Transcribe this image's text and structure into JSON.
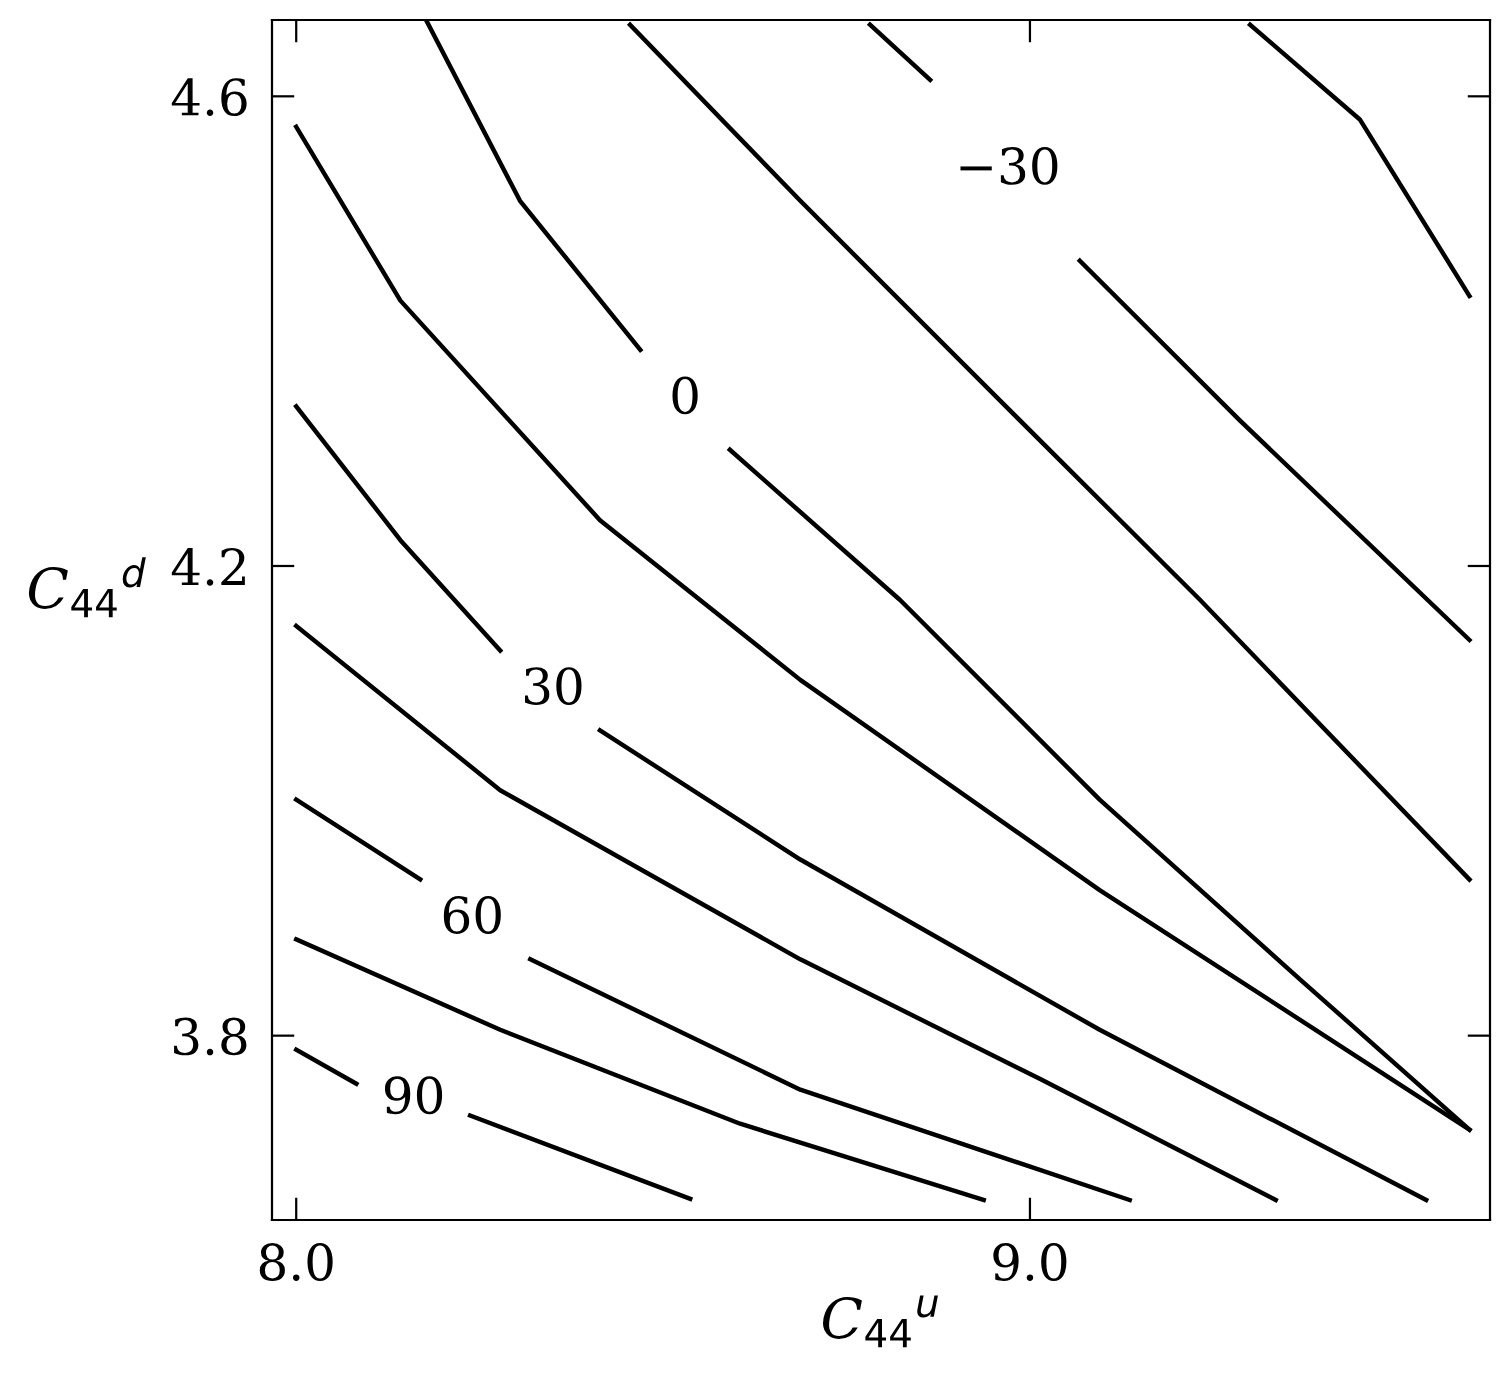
{
  "chart_data": {
    "type": "line",
    "xlabel": "C$_{44}$$^{u}$",
    "ylabel": "C$_{44}$$^{d}$",
    "xlim": [
      7.967,
      9.627
    ],
    "ylim": [
      3.643,
      4.665
    ],
    "xticks": [
      {
        "value": 8.0,
        "label": "8.0"
      },
      {
        "value": 9.0,
        "label": "9.0"
      }
    ],
    "yticks": [
      {
        "value": 3.8,
        "label": "3.8"
      },
      {
        "value": 4.2,
        "label": "4.2"
      },
      {
        "value": 4.6,
        "label": "4.6"
      }
    ],
    "grid": false,
    "legend": false,
    "marker": "none",
    "line_style": "solid",
    "series": [
      {
        "name": "90",
        "color": "#000000",
        "x": [
          8.0,
          8.082,
          8.16,
          8.237,
          8.537
        ],
        "values": [
          3.788,
          3.759,
          null,
          3.732,
          3.661
        ]
      },
      {
        "color": "#000000",
        "x": [
          8.0,
          8.278,
          8.605,
          8.937
        ],
        "values": [
          3.882,
          3.805,
          3.725,
          3.66
        ]
      },
      {
        "name": "60",
        "color": "#000000",
        "x": [
          8.0,
          8.169,
          8.24,
          8.319,
          8.687,
          9.136
        ],
        "values": [
          4.001,
          3.933,
          null,
          3.865,
          3.754,
          3.66
        ]
      },
      {
        "color": "#000000",
        "x": [
          8.0,
          8.278,
          8.687,
          9.014,
          9.335
        ],
        "values": [
          4.149,
          4.009,
          3.865,
          3.763,
          3.66
        ]
      },
      {
        "name": "30",
        "color": "#000000",
        "x": [
          8.0,
          8.142,
          8.278,
          8.35,
          8.414,
          8.687,
          9.095,
          9.54
        ],
        "values": [
          4.336,
          4.222,
          4.128,
          null,
          4.06,
          3.95,
          3.805,
          3.66
        ]
      },
      {
        "color": "#000000",
        "x": [
          8.0,
          8.142,
          8.414,
          8.687,
          9.095,
          9.599
        ],
        "values": [
          4.574,
          4.426,
          4.239,
          4.103,
          3.924,
          3.72
        ]
      },
      {
        "name": "0",
        "color": "#000000",
        "x": [
          8.177,
          8.305,
          8.469,
          8.53,
          8.591,
          8.823,
          9.095,
          9.368,
          9.599
        ],
        "values": [
          4.665,
          4.511,
          4.384,
          null,
          4.299,
          4.171,
          4.001,
          3.848,
          3.72
        ]
      },
      {
        "color": "#000000",
        "x": [
          8.455,
          8.687,
          8.959,
          9.232,
          9.599
        ],
        "values": [
          4.661,
          4.511,
          4.341,
          4.171,
          3.933
        ]
      },
      {
        "name": "−30",
        "color": "#000000",
        "x": [
          8.782,
          8.864,
          8.97,
          9.068,
          9.286,
          9.599
        ],
        "values": [
          4.661,
          4.614,
          null,
          4.46,
          4.324,
          4.137
        ]
      },
      {
        "color": "#000000",
        "x": [
          9.3,
          9.45,
          9.599
        ],
        "values": [
          4.661,
          4.58,
          4.43
        ]
      }
    ]
  }
}
